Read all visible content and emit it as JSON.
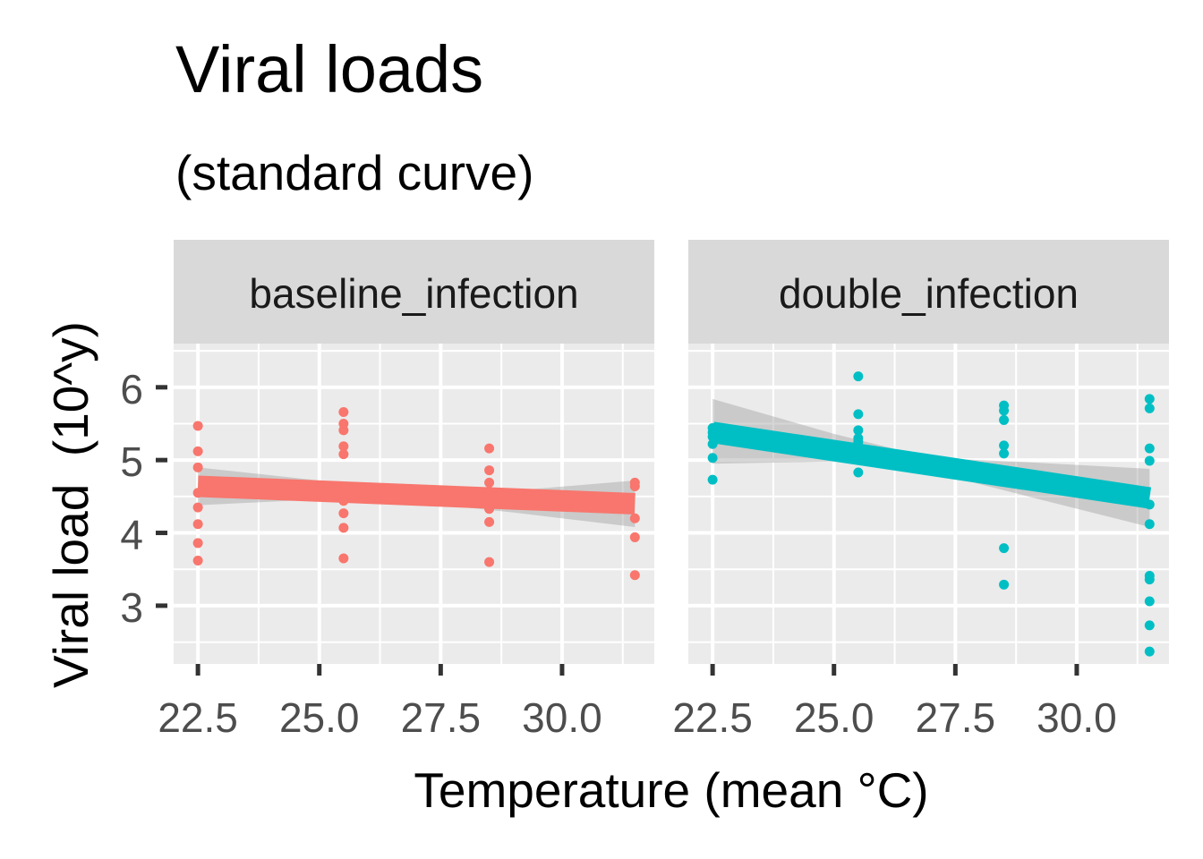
{
  "chart_data": {
    "type": "scatter",
    "title": "Viral loads",
    "subtitle": "(standard curve)",
    "xlabel": "Temperature (mean °C)",
    "ylabel": "Viral load  (10^y)",
    "xlim": [
      22.0,
      31.9
    ],
    "ylim": [
      2.2,
      6.6
    ],
    "x_ticks": [
      22.5,
      25.0,
      27.5,
      30.0
    ],
    "x_tick_labels": [
      "22.5",
      "25.0",
      "27.5",
      "30.0"
    ],
    "y_ticks": [
      3,
      4,
      5,
      6
    ],
    "y_tick_labels": [
      "3",
      "4",
      "5",
      "6"
    ],
    "grid": true,
    "legend": "none",
    "facets": [
      {
        "label": "baseline_infection",
        "color": "#F8766D",
        "points": [
          [
            22.5,
            5.47
          ],
          [
            22.5,
            5.12
          ],
          [
            22.5,
            4.9
          ],
          [
            22.5,
            4.55
          ],
          [
            22.5,
            4.35
          ],
          [
            22.5,
            4.12
          ],
          [
            22.5,
            3.86
          ],
          [
            22.5,
            3.62
          ],
          [
            25.5,
            5.66
          ],
          [
            25.5,
            5.5
          ],
          [
            25.5,
            5.41
          ],
          [
            25.5,
            5.19
          ],
          [
            25.5,
            5.08
          ],
          [
            25.5,
            4.44
          ],
          [
            25.5,
            4.27
          ],
          [
            25.5,
            4.07
          ],
          [
            25.5,
            3.65
          ],
          [
            28.5,
            5.16
          ],
          [
            28.5,
            4.86
          ],
          [
            28.5,
            4.69
          ],
          [
            28.5,
            4.57
          ],
          [
            28.5,
            4.43
          ],
          [
            28.5,
            4.33
          ],
          [
            28.5,
            4.15
          ],
          [
            28.5,
            3.6
          ],
          [
            31.5,
            4.69
          ],
          [
            31.5,
            4.64
          ],
          [
            31.5,
            4.2
          ],
          [
            31.5,
            3.94
          ],
          [
            31.5,
            3.42
          ]
        ],
        "fit": {
          "x": [
            22.5,
            31.5
          ],
          "y": [
            4.64,
            4.4
          ]
        },
        "ci": {
          "x": [
            22.5,
            25.0,
            27.0,
            29.0,
            31.5
          ],
          "lower": [
            4.38,
            4.46,
            4.42,
            4.28,
            4.08
          ],
          "upper": [
            4.9,
            4.72,
            4.58,
            4.58,
            4.72
          ]
        }
      },
      {
        "label": "double_infection",
        "color": "#00BFC4",
        "points": [
          [
            22.5,
            5.44
          ],
          [
            22.5,
            5.38
          ],
          [
            22.5,
            5.32
          ],
          [
            22.5,
            5.22
          ],
          [
            22.5,
            5.03
          ],
          [
            22.5,
            4.73
          ],
          [
            25.5,
            6.15
          ],
          [
            25.5,
            5.63
          ],
          [
            25.5,
            5.41
          ],
          [
            25.5,
            5.3
          ],
          [
            25.5,
            5.25
          ],
          [
            25.5,
            4.83
          ],
          [
            28.5,
            5.75
          ],
          [
            28.5,
            5.68
          ],
          [
            28.5,
            5.55
          ],
          [
            28.5,
            5.2
          ],
          [
            28.5,
            5.09
          ],
          [
            28.5,
            3.79
          ],
          [
            28.5,
            3.29
          ],
          [
            31.5,
            5.84
          ],
          [
            31.5,
            5.71
          ],
          [
            31.5,
            5.16
          ],
          [
            31.5,
            4.99
          ],
          [
            31.5,
            4.39
          ],
          [
            31.5,
            4.12
          ],
          [
            31.5,
            3.41
          ],
          [
            31.5,
            3.36
          ],
          [
            31.5,
            3.06
          ],
          [
            31.5,
            2.73
          ],
          [
            31.5,
            2.37
          ]
        ],
        "fit": {
          "x": [
            22.5,
            31.5
          ],
          "y": [
            5.38,
            4.48
          ]
        },
        "ci": {
          "x": [
            22.5,
            25.0,
            27.0,
            29.0,
            31.5
          ],
          "lower": [
            4.95,
            4.98,
            4.84,
            4.5,
            4.08
          ],
          "upper": [
            5.84,
            5.36,
            5.03,
            4.97,
            4.88
          ]
        }
      }
    ]
  }
}
